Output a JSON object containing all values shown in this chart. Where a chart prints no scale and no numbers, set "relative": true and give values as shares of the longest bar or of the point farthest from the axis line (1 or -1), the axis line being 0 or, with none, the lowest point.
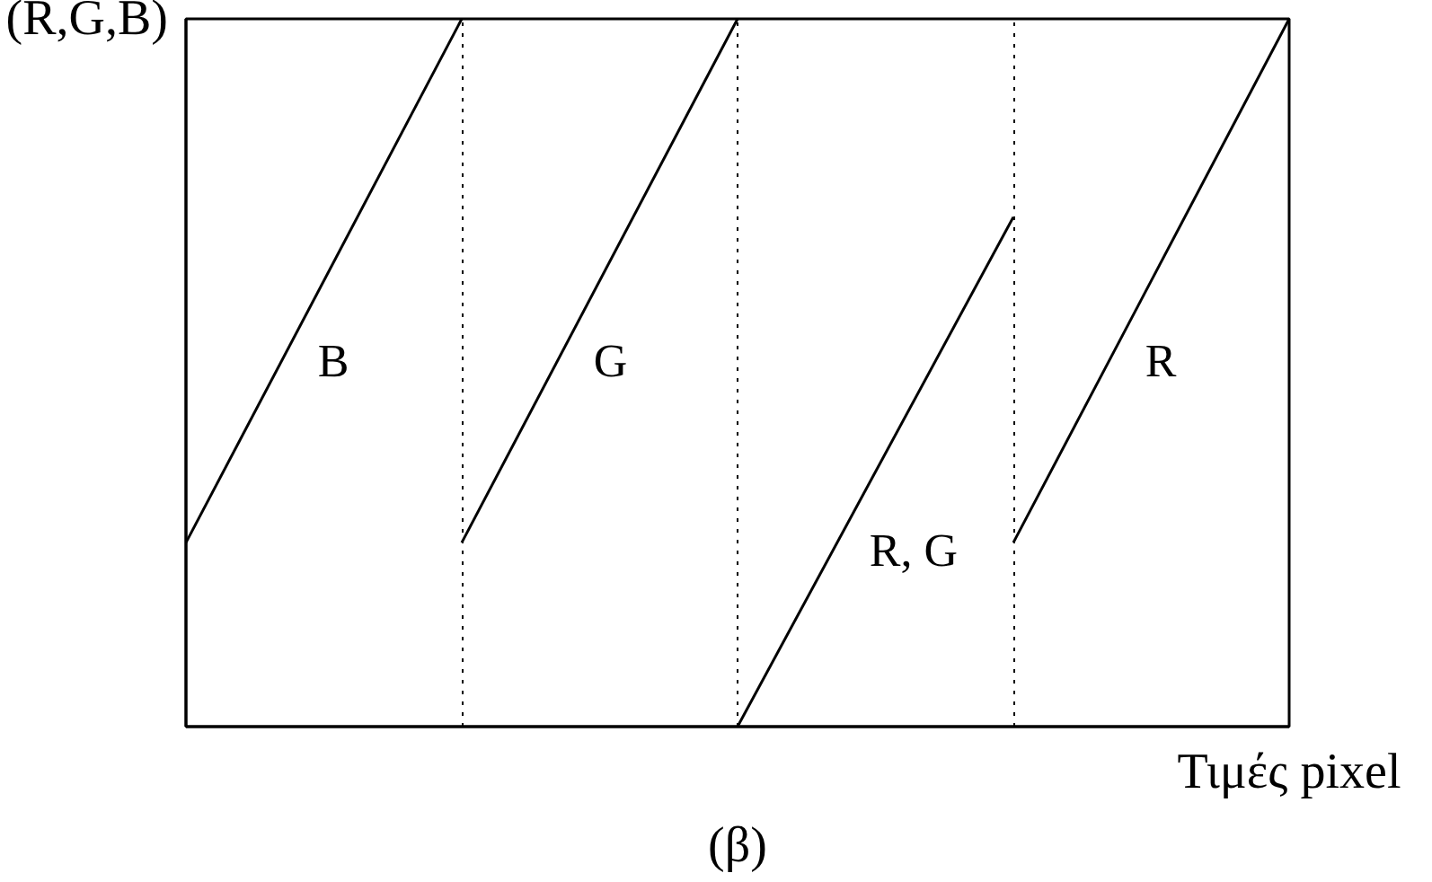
{
  "chart_data": {
    "type": "line",
    "relative": true,
    "ylabel": "(R,G,B)",
    "xlabel": "Τιμές pixel",
    "annotations": [
      "(β)"
    ],
    "categories": [
      null,
      null,
      null,
      null,
      null
    ],
    "series": [
      {
        "name": "B",
        "color": "#000000",
        "values": [
          0.26,
          1,
          null,
          null,
          null
        ]
      },
      {
        "name": "G",
        "color": "#000000",
        "values": [
          null,
          0.26,
          1,
          null,
          null
        ]
      },
      {
        "name": "R, G",
        "color": "#000000",
        "values": [
          null,
          null,
          0,
          0.72,
          null
        ]
      },
      {
        "name": "R",
        "color": "#000000",
        "values": [
          null,
          null,
          null,
          0.26,
          1
        ]
      }
    ],
    "grid": "x",
    "legend": false,
    "marker": "none",
    "line_style": "solid",
    "tick_labels": false
  }
}
